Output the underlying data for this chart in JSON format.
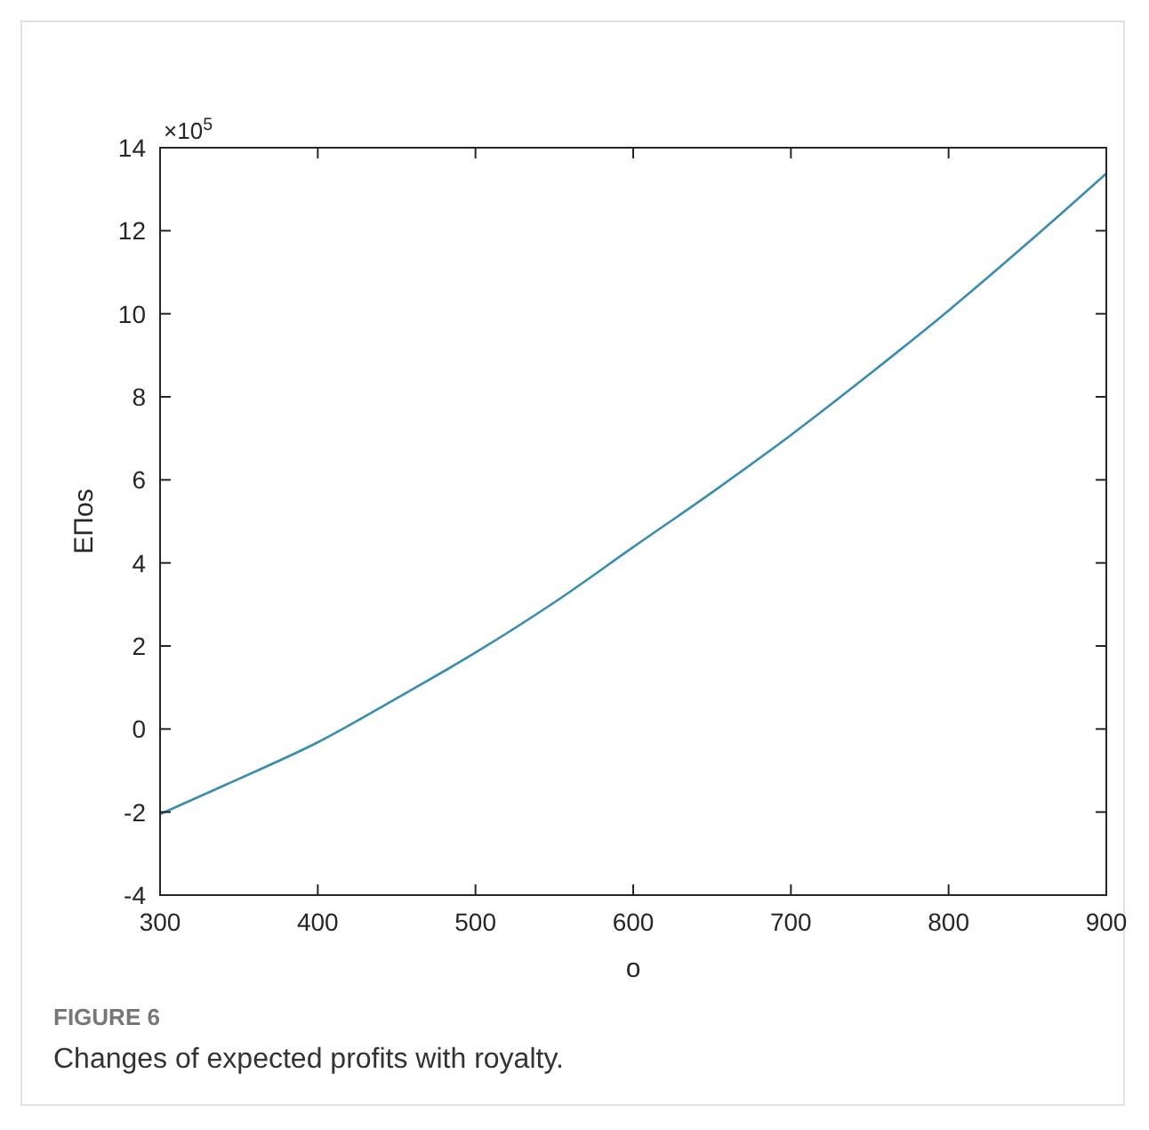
{
  "chart_data": {
    "type": "line",
    "xlabel": "o",
    "ylabel": "EΠos",
    "x": [
      300,
      350,
      400,
      450,
      500,
      550,
      600,
      650,
      700,
      750,
      800,
      850,
      900
    ],
    "series": [
      {
        "color": "#3a8db0",
        "values": [
          -2.05,
          -1.2,
          -0.32,
          0.74,
          1.84,
          3.05,
          4.38,
          5.7,
          7.08,
          8.55,
          10.08,
          11.7,
          13.38
        ]
      }
    ],
    "xlim": [
      300,
      900
    ],
    "xticks": [
      300,
      400,
      500,
      600,
      700,
      800,
      900
    ],
    "ylim": [
      -4,
      14
    ],
    "yticks": [
      -4,
      -2,
      0,
      2,
      4,
      6,
      8,
      10,
      12,
      14
    ],
    "grid": false,
    "line_style": "solid",
    "marker": "none",
    "annotations": [
      "×10$^{5}$",
      "FIGURE 6",
      "Changes of expected profits with royalty."
    ]
  }
}
